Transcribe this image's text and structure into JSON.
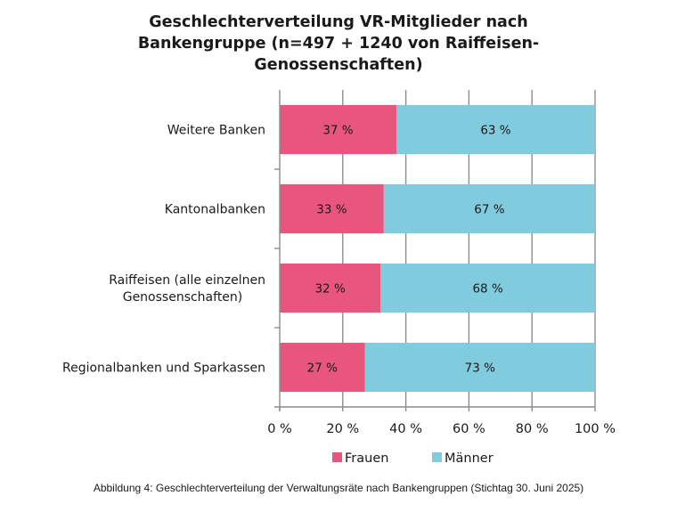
{
  "chart_data": {
    "type": "bar",
    "orientation": "horizontal",
    "stacked": true,
    "title_lines": [
      "Geschlechterverteilung VR-Mitglieder nach",
      "Bankengruppe (n=497 + 1240 von Raiffeisen-",
      "Genossenschaften)"
    ],
    "categories": [
      [
        "Weitere Banken"
      ],
      [
        "Kantonalbanken"
      ],
      [
        "Raiffeisen (alle einzelnen",
        "Genossenschaften)"
      ],
      [
        "Regionalbanken und Sparkassen"
      ]
    ],
    "series": [
      {
        "name": "Frauen",
        "color": "#e8557d",
        "values": [
          37,
          33,
          32,
          27
        ],
        "labels": [
          "37 %",
          "33 %",
          "32 %",
          "27 %"
        ]
      },
      {
        "name": "Männer",
        "color": "#80cbdd",
        "values": [
          63,
          67,
          68,
          73
        ],
        "labels": [
          "63 %",
          "67 %",
          "68 %",
          "73 %"
        ]
      }
    ],
    "xlim": [
      0,
      100
    ],
    "xticks": [
      0,
      20,
      40,
      60,
      80,
      100
    ],
    "xtick_labels": [
      "0 %",
      "20 %",
      "40 %",
      "60 %",
      "80 %",
      "100 %"
    ],
    "xlabel": "",
    "ylabel": "",
    "grid": "vertical",
    "legend_position": "bottom"
  },
  "caption": "Abbildung 4: Geschlechterverteilung der Verwaltungsräte nach Bankengruppen (Stichtag 30. Juni 2025)"
}
